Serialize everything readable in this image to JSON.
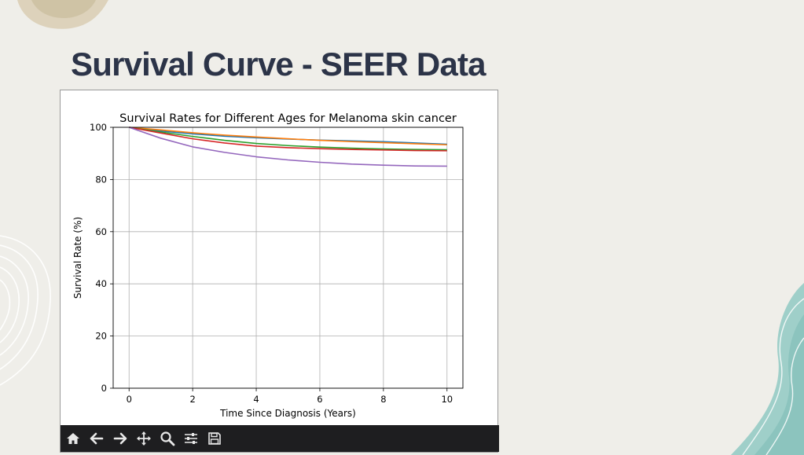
{
  "slide": {
    "title": "Survival Curve - SEER Data"
  },
  "toolbar": {
    "buttons": [
      {
        "name": "home-button",
        "icon": "home-icon"
      },
      {
        "name": "back-button",
        "icon": "arrow-left-icon"
      },
      {
        "name": "forward-button",
        "icon": "arrow-right-icon"
      },
      {
        "name": "pan-button",
        "icon": "move-icon"
      },
      {
        "name": "zoom-button",
        "icon": "magnifier-icon"
      },
      {
        "name": "configure-subplots-button",
        "icon": "sliders-icon"
      },
      {
        "name": "save-button",
        "icon": "floppy-disk-icon"
      }
    ]
  },
  "chart_data": {
    "type": "line",
    "title": "Survival Rates for Different Ages for Melanoma skin cancer",
    "xlabel": "Time Since Diagnosis (Years)",
    "ylabel": "Survival Rate (%)",
    "xlim": [
      -0.5,
      10.5
    ],
    "ylim": [
      0,
      100
    ],
    "xticks": [
      0,
      2,
      4,
      6,
      8,
      10
    ],
    "yticks": [
      0,
      20,
      40,
      60,
      80,
      100
    ],
    "grid": true,
    "x": [
      0,
      1,
      2,
      3,
      4,
      5,
      6,
      7,
      8,
      9,
      10
    ],
    "series": [
      {
        "color": "#1f77b4",
        "values": [
          100,
          98.6,
          97.5,
          96.6,
          96.0,
          95.5,
          95.1,
          94.8,
          94.5,
          94.0,
          93.5
        ]
      },
      {
        "color": "#ff7f0e",
        "values": [
          100,
          99.0,
          97.9,
          97.0,
          96.3,
          95.6,
          95.0,
          94.5,
          94.1,
          93.7,
          93.3
        ]
      },
      {
        "color": "#2ca02c",
        "values": [
          100,
          98.2,
          96.5,
          95.0,
          93.8,
          93.0,
          92.4,
          92.0,
          91.7,
          91.5,
          91.4
        ]
      },
      {
        "color": "#d62728",
        "values": [
          100,
          97.8,
          95.6,
          94.0,
          92.8,
          92.2,
          91.8,
          91.5,
          91.3,
          91.1,
          91.0
        ]
      },
      {
        "color": "#9467bd",
        "values": [
          100,
          95.8,
          92.5,
          90.4,
          88.7,
          87.5,
          86.6,
          85.9,
          85.5,
          85.2,
          85.1
        ]
      }
    ]
  }
}
